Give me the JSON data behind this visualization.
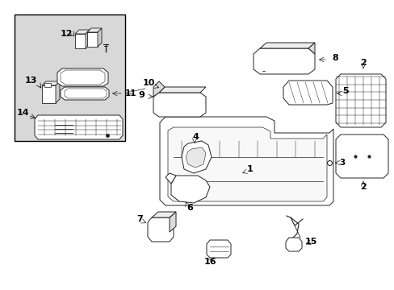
{
  "figsize": [
    4.89,
    3.6
  ],
  "dpi": 100,
  "bg": "#ffffff",
  "inset_bg": "#d8d8d8",
  "lc": "#222222",
  "tc": "#000000",
  "lw": 0.7
}
